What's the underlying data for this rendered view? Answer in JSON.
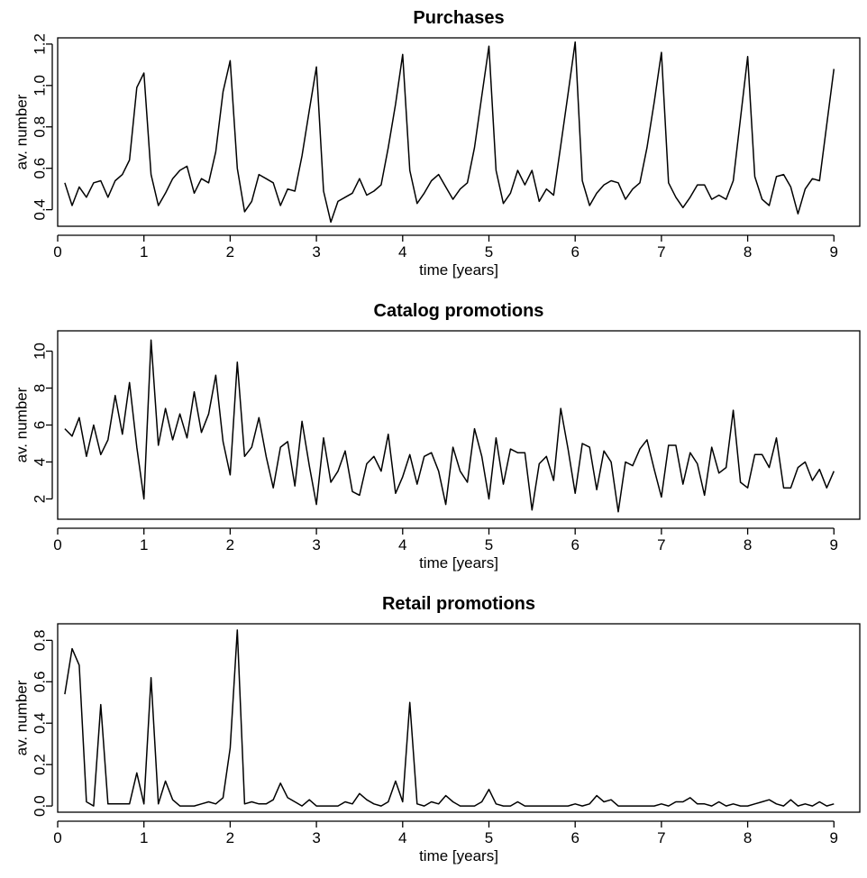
{
  "chart_data": [
    {
      "type": "line",
      "title": "Purchases",
      "xlabel": "time [years]",
      "ylabel": "av. number",
      "xlim": [
        0,
        9.3
      ],
      "ylim": [
        0.32,
        1.23
      ],
      "xticks": [
        "0",
        "1",
        "2",
        "3",
        "4",
        "5",
        "6",
        "7",
        "8",
        "9"
      ],
      "yticks": [
        "0.4",
        "0.6",
        "0.8",
        "1.0",
        "1.2"
      ],
      "grid": false,
      "series": [
        {
          "x": [
            0.083,
            0.167,
            0.25,
            0.333,
            0.417,
            0.5,
            0.583,
            0.667,
            0.75,
            0.833,
            0.917,
            1.0,
            1.083,
            1.167,
            1.25,
            1.333,
            1.417,
            1.5,
            1.583,
            1.667,
            1.75,
            1.833,
            1.917,
            2.0,
            2.083,
            2.167,
            2.25,
            2.333,
            2.417,
            2.5,
            2.583,
            2.667,
            2.75,
            2.833,
            2.917,
            3.0,
            3.083,
            3.167,
            3.25,
            3.333,
            3.417,
            3.5,
            3.583,
            3.667,
            3.75,
            3.833,
            3.917,
            4.0,
            4.083,
            4.167,
            4.25,
            4.333,
            4.417,
            4.5,
            4.583,
            4.667,
            4.75,
            4.833,
            4.917,
            5.0,
            5.083,
            5.167,
            5.25,
            5.333,
            5.417,
            5.5,
            5.583,
            5.667,
            5.75,
            5.833,
            5.917,
            6.0,
            6.083,
            6.167,
            6.25,
            6.333,
            6.417,
            6.5,
            6.583,
            6.667,
            6.75,
            6.833,
            6.917,
            7.0,
            7.083,
            7.167,
            7.25,
            7.333,
            7.417,
            7.5,
            7.583,
            7.667,
            7.75,
            7.833,
            7.917,
            8.0,
            8.083,
            8.167,
            8.25,
            8.333,
            8.417,
            8.5,
            8.583,
            8.667,
            8.75,
            8.833,
            8.917,
            9.0
          ],
          "values": [
            0.53,
            0.42,
            0.51,
            0.46,
            0.53,
            0.54,
            0.46,
            0.54,
            0.57,
            0.64,
            0.99,
            1.06,
            0.57,
            0.42,
            0.48,
            0.55,
            0.59,
            0.61,
            0.48,
            0.55,
            0.53,
            0.68,
            0.97,
            1.12,
            0.6,
            0.39,
            0.44,
            0.57,
            0.55,
            0.53,
            0.42,
            0.5,
            0.49,
            0.66,
            0.88,
            1.09,
            0.49,
            0.34,
            0.44,
            0.46,
            0.48,
            0.55,
            0.47,
            0.49,
            0.52,
            0.7,
            0.91,
            1.15,
            0.59,
            0.43,
            0.48,
            0.54,
            0.57,
            0.51,
            0.45,
            0.5,
            0.53,
            0.7,
            0.95,
            1.19,
            0.59,
            0.43,
            0.48,
            0.59,
            0.52,
            0.59,
            0.44,
            0.5,
            0.47,
            0.71,
            0.96,
            1.21,
            0.54,
            0.42,
            0.48,
            0.52,
            0.54,
            0.53,
            0.45,
            0.5,
            0.53,
            0.7,
            0.92,
            1.16,
            0.53,
            0.46,
            0.41,
            0.46,
            0.52,
            0.52,
            0.45,
            0.47,
            0.45,
            0.54,
            0.84,
            1.14,
            0.56,
            0.45,
            0.42,
            0.56,
            0.57,
            0.51,
            0.38,
            0.5,
            0.55,
            0.54,
            0.81,
            1.08
          ]
        }
      ]
    },
    {
      "type": "line",
      "title": "Catalog promotions",
      "xlabel": "time [years]",
      "ylabel": "av. number",
      "xlim": [
        0,
        9.3
      ],
      "ylim": [
        0.9,
        11.1
      ],
      "xticks": [
        "0",
        "1",
        "2",
        "3",
        "4",
        "5",
        "6",
        "7",
        "8",
        "9"
      ],
      "yticks": [
        "2",
        "4",
        "6",
        "8",
        "10"
      ],
      "grid": false,
      "series": [
        {
          "x": [
            0.083,
            0.167,
            0.25,
            0.333,
            0.417,
            0.5,
            0.583,
            0.667,
            0.75,
            0.833,
            0.917,
            1.0,
            1.083,
            1.167,
            1.25,
            1.333,
            1.417,
            1.5,
            1.583,
            1.667,
            1.75,
            1.833,
            1.917,
            2.0,
            2.083,
            2.167,
            2.25,
            2.333,
            2.417,
            2.5,
            2.583,
            2.667,
            2.75,
            2.833,
            2.917,
            3.0,
            3.083,
            3.167,
            3.25,
            3.333,
            3.417,
            3.5,
            3.583,
            3.667,
            3.75,
            3.833,
            3.917,
            4.0,
            4.083,
            4.167,
            4.25,
            4.333,
            4.417,
            4.5,
            4.583,
            4.667,
            4.75,
            4.833,
            4.917,
            5.0,
            5.083,
            5.167,
            5.25,
            5.333,
            5.417,
            5.5,
            5.583,
            5.667,
            5.75,
            5.833,
            5.917,
            6.0,
            6.083,
            6.167,
            6.25,
            6.333,
            6.417,
            6.5,
            6.583,
            6.667,
            6.75,
            6.833,
            6.917,
            7.0,
            7.083,
            7.167,
            7.25,
            7.333,
            7.417,
            7.5,
            7.583,
            7.667,
            7.75,
            7.833,
            7.917,
            8.0,
            8.083,
            8.167,
            8.25,
            8.333,
            8.417,
            8.5,
            8.583,
            8.667,
            8.75,
            8.833,
            8.917,
            9.0
          ],
          "values": [
            5.8,
            5.4,
            6.4,
            4.3,
            6.0,
            4.4,
            5.2,
            7.6,
            5.5,
            8.3,
            4.8,
            2.0,
            10.6,
            4.9,
            6.9,
            5.2,
            6.6,
            5.3,
            7.8,
            5.6,
            6.6,
            8.7,
            5.1,
            3.3,
            9.4,
            4.3,
            4.8,
            6.4,
            4.3,
            2.6,
            4.8,
            5.1,
            2.7,
            6.2,
            3.8,
            1.7,
            5.3,
            2.9,
            3.5,
            4.6,
            2.4,
            2.2,
            3.9,
            4.3,
            3.5,
            5.5,
            2.3,
            3.2,
            4.4,
            2.8,
            4.3,
            4.5,
            3.5,
            1.7,
            4.8,
            3.5,
            2.9,
            5.8,
            4.3,
            2.0,
            5.3,
            2.8,
            4.7,
            4.5,
            4.5,
            1.4,
            3.9,
            4.3,
            3.0,
            6.9,
            4.7,
            2.3,
            5.0,
            4.8,
            2.5,
            4.6,
            4.0,
            1.3,
            4.0,
            3.8,
            4.7,
            5.2,
            3.6,
            2.1,
            4.9,
            4.9,
            2.8,
            4.5,
            3.9,
            2.2,
            4.8,
            3.4,
            3.7,
            6.8,
            2.9,
            2.6,
            4.4,
            4.4,
            3.7,
            5.3,
            2.6,
            2.6,
            3.7,
            4.0,
            3.0,
            3.6,
            2.6,
            3.5
          ]
        }
      ]
    },
    {
      "type": "line",
      "title": "Retail promotions",
      "xlabel": "time [years]",
      "ylabel": "av. number",
      "xlim": [
        0,
        9.3
      ],
      "ylim": [
        -0.03,
        0.88
      ],
      "xticks": [
        "0",
        "1",
        "2",
        "3",
        "4",
        "5",
        "6",
        "7",
        "8",
        "9"
      ],
      "yticks": [
        "0.0",
        "0.2",
        "0.4",
        "0.6",
        "0.8"
      ],
      "grid": false,
      "series": [
        {
          "x": [
            0.083,
            0.167,
            0.25,
            0.333,
            0.417,
            0.5,
            0.583,
            0.667,
            0.75,
            0.833,
            0.917,
            1.0,
            1.083,
            1.167,
            1.25,
            1.333,
            1.417,
            1.5,
            1.583,
            1.667,
            1.75,
            1.833,
            1.917,
            2.0,
            2.083,
            2.167,
            2.25,
            2.333,
            2.417,
            2.5,
            2.583,
            2.667,
            2.75,
            2.833,
            2.917,
            3.0,
            3.083,
            3.167,
            3.25,
            3.333,
            3.417,
            3.5,
            3.583,
            3.667,
            3.75,
            3.833,
            3.917,
            4.0,
            4.083,
            4.167,
            4.25,
            4.333,
            4.417,
            4.5,
            4.583,
            4.667,
            4.75,
            4.833,
            4.917,
            5.0,
            5.083,
            5.167,
            5.25,
            5.333,
            5.417,
            5.5,
            5.583,
            5.667,
            5.75,
            5.833,
            5.917,
            6.0,
            6.083,
            6.167,
            6.25,
            6.333,
            6.417,
            6.5,
            6.583,
            6.667,
            6.75,
            6.833,
            6.917,
            7.0,
            7.083,
            7.167,
            7.25,
            7.333,
            7.417,
            7.5,
            7.583,
            7.667,
            7.75,
            7.833,
            7.917,
            8.0,
            8.083,
            8.167,
            8.25,
            8.333,
            8.417,
            8.5,
            8.583,
            8.667,
            8.75,
            8.833,
            8.917,
            9.0
          ],
          "values": [
            0.54,
            0.76,
            0.68,
            0.02,
            0.0,
            0.49,
            0.01,
            0.01,
            0.01,
            0.01,
            0.16,
            0.01,
            0.62,
            0.01,
            0.12,
            0.03,
            0.0,
            0.0,
            0.0,
            0.01,
            0.02,
            0.01,
            0.04,
            0.28,
            0.85,
            0.01,
            0.02,
            0.01,
            0.01,
            0.03,
            0.11,
            0.04,
            0.02,
            0.0,
            0.03,
            0.0,
            0.0,
            0.0,
            0.0,
            0.02,
            0.01,
            0.06,
            0.03,
            0.01,
            0.0,
            0.02,
            0.12,
            0.02,
            0.5,
            0.01,
            0.0,
            0.02,
            0.01,
            0.05,
            0.02,
            0.0,
            0.0,
            0.0,
            0.02,
            0.08,
            0.01,
            0.0,
            0.0,
            0.02,
            0.0,
            0.0,
            0.0,
            0.0,
            0.0,
            0.0,
            0.0,
            0.01,
            0.0,
            0.01,
            0.05,
            0.02,
            0.03,
            0.0,
            0.0,
            0.0,
            0.0,
            0.0,
            0.0,
            0.01,
            0.0,
            0.02,
            0.02,
            0.04,
            0.01,
            0.01,
            0.0,
            0.02,
            0.0,
            0.01,
            0.0,
            0.0,
            0.01,
            0.02,
            0.03,
            0.01,
            0.0,
            0.03,
            0.0,
            0.01,
            0.0,
            0.02,
            0.0,
            0.01
          ]
        }
      ]
    }
  ]
}
